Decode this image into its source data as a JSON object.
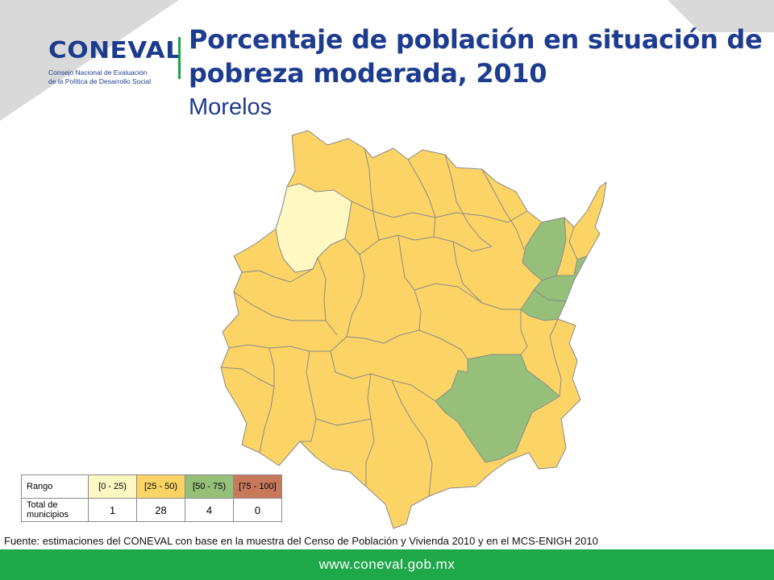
{
  "logo": {
    "word": "CONEVAL",
    "tagline_1": "Consejo Nacional de Evaluación",
    "tagline_2": "de la Política de Desarrollo Social"
  },
  "header": {
    "title": "Porcentaje de población en situación de pobreza moderada, 2010",
    "subtitle": "Morelos"
  },
  "colors": {
    "range_0_25": "#fff8c2",
    "range_25_50": "#fcd466",
    "range_50_75": "#96c07a",
    "range_75_100": "#c8795a",
    "brand_blue": "#1d3c8f",
    "brand_green": "#1ea84a"
  },
  "legend": {
    "row1_label": "Rango",
    "row2_label": "Total de municipios",
    "ranges": [
      "[0 - 25)",
      "[25 - 50)",
      "[50 - 75)",
      "[75 - 100]"
    ],
    "counts": [
      "1",
      "28",
      "4",
      "0"
    ]
  },
  "source": "Fuente: estimaciones del CONEVAL con base en la muestra del Censo de Población y Vivienda 2010 y en el MCS-ENIGH 2010",
  "footer": {
    "url": "www.coneval.gob.mx"
  }
}
